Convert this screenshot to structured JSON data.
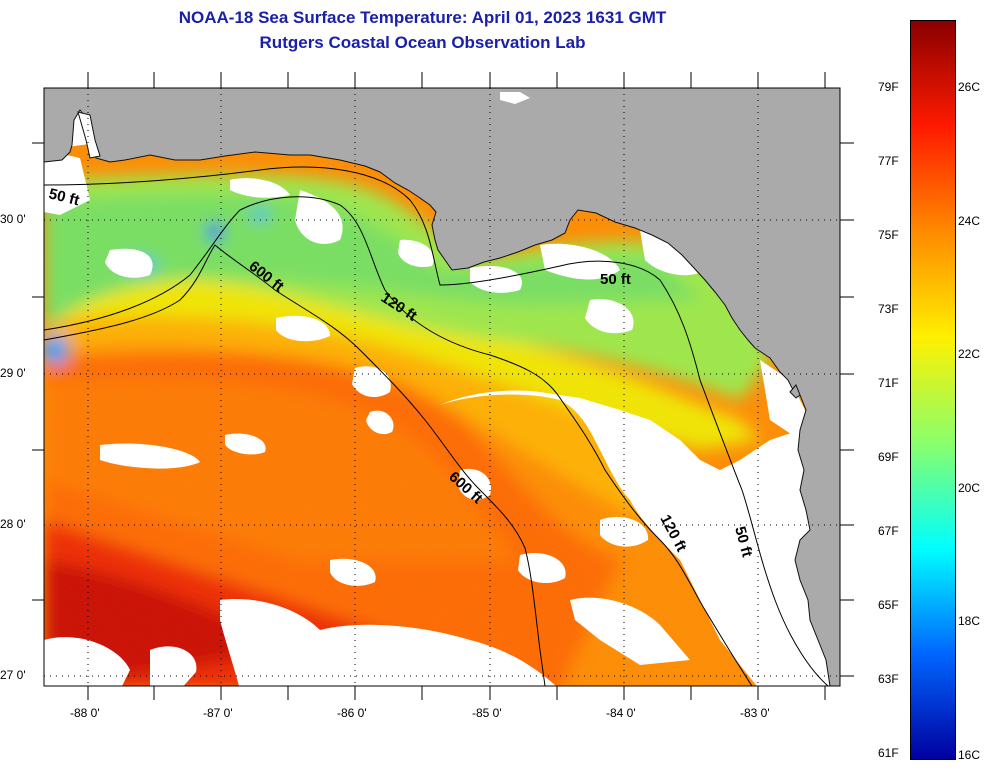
{
  "title": "NOAA-18 Sea Surface Temperature:  April 01, 2023 1631 GMT",
  "subtitle": "Rutgers Coastal Ocean Observation Lab",
  "map": {
    "lat_labels": [
      "30 0'",
      "29 0'",
      "28 0'",
      "27 0'"
    ],
    "lon_labels": [
      "-88 0'",
      "-87 0'",
      "-86 0'",
      "-85 0'",
      "-84 0'",
      "-83 0'"
    ],
    "contours": {
      "c50_west": "50 ft",
      "c50_east": "50 ft",
      "c50_south": "50 ft",
      "c120_west": "120 ft",
      "c120_south": "120 ft",
      "c600_north": "600 ft",
      "c600_south": "600 ft"
    }
  },
  "colorbar": {
    "fahrenheit": [
      "79F",
      "77F",
      "75F",
      "73F",
      "71F",
      "69F",
      "67F",
      "65F",
      "63F",
      "61F"
    ],
    "celsius": [
      "26C",
      "24C",
      "22C",
      "20C",
      "18C",
      "16C"
    ],
    "colors": [
      "#8a0000",
      "#ff1a00",
      "#ff8a00",
      "#fff000",
      "#8aff6a",
      "#00ffff",
      "#0066ff",
      "#0000a0"
    ]
  }
}
